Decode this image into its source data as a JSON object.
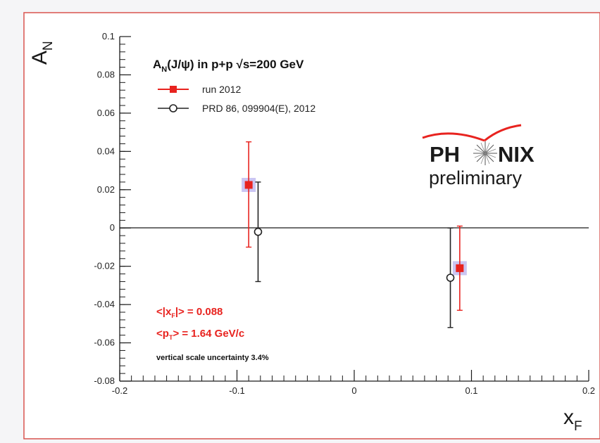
{
  "chart_data": {
    "type": "scatter",
    "title_parts": {
      "pre": "A",
      "sub": "N",
      "post": "(J/ψ) in p+p √s=200 GeV"
    },
    "xlabel": {
      "main": "x",
      "sub": "F"
    },
    "ylabel": {
      "main": "A",
      "sub": "N"
    },
    "xlim": [
      -0.2,
      0.2
    ],
    "ylim": [
      -0.08,
      0.1
    ],
    "x_ticks": [
      -0.2,
      -0.1,
      0,
      0.1,
      0.2
    ],
    "x_tick_labels": [
      "-0.2",
      "-0.1",
      "0",
      "0.1",
      "0.2"
    ],
    "y_ticks": [
      -0.08,
      -0.06,
      -0.04,
      -0.02,
      0,
      0.02,
      0.04,
      0.06,
      0.08,
      0.1
    ],
    "y_tick_labels": [
      "-0.08",
      "-0.06",
      "-0.04",
      "-0.02",
      "0",
      "0.02",
      "0.04",
      "0.06",
      "0.08",
      "0.1"
    ],
    "grid": false,
    "zero_line": true,
    "legend_position": "top-left",
    "series": [
      {
        "name": "run 2012",
        "color": "#e8231f",
        "marker": "filled-square",
        "systematic_box_color": "#b9b2ee",
        "points": [
          {
            "x": -0.09,
            "y": 0.0225,
            "err_up": 0.0225,
            "err_down": 0.0325
          },
          {
            "x": 0.09,
            "y": -0.021,
            "err_up": 0.022,
            "err_down": 0.022
          }
        ]
      },
      {
        "name": "PRD 86, 099904(E), 2012",
        "color": "#222222",
        "marker": "open-circle",
        "points": [
          {
            "x": -0.082,
            "y": -0.002,
            "err_up": 0.026,
            "err_down": 0.026
          },
          {
            "x": 0.082,
            "y": -0.026,
            "err_up": 0.026,
            "err_down": 0.026
          }
        ]
      }
    ],
    "annotations": {
      "xf_line": {
        "pre": "<|x",
        "sub": "F",
        "post": "|> = 0.088"
      },
      "pt_line": {
        "pre": "<p",
        "sub": "T",
        "post": "> = 1.64 GeV/c"
      },
      "scale_note": "vertical scale uncertainty 3.4%",
      "annotation_color": "#e8231f"
    },
    "logo": {
      "text_left": "PH",
      "text_right": "NIX",
      "subtitle": "preliminary",
      "arc_color": "#e8231f"
    }
  },
  "colors": {
    "frame_border": "#d9534f",
    "axis": "#1a1a1a"
  }
}
